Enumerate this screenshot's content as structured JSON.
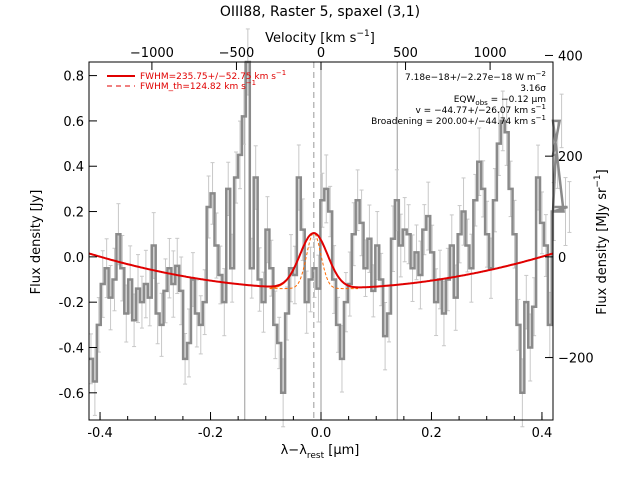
{
  "chart_data": {
    "type": "line",
    "title": "OIII88, Raster 5, spaxel (3,1)",
    "xlabel": "λ−λ",
    "xlabel_sub": "rest",
    "xlabel_unit": " [μm]",
    "ylabel": "Flux density [Jy]",
    "top_axis_label_pre": "Velocity [km s",
    "top_axis_label_sup": "−1",
    "top_axis_label_post": "]",
    "right_axis_label_pre": "Flux density [MJy sr",
    "right_axis_label_sup": "−1",
    "right_axis_label_post": "]",
    "xlim": [
      -0.42,
      0.42
    ],
    "ylim": [
      -0.72,
      0.86
    ],
    "top_xlim": [
      -1372,
      1372
    ],
    "right_ylim": [
      -324,
      387
    ],
    "x_ticks": [
      "-0.4",
      "-0.2",
      "0.0",
      "0.2",
      "0.4"
    ],
    "x_tick_values": [
      -0.4,
      -0.2,
      0.0,
      0.2,
      0.4
    ],
    "y_ticks": [
      "-0.6",
      "-0.4",
      "-0.2",
      "0.0",
      "0.2",
      "0.4",
      "0.6",
      "0.8"
    ],
    "y_tick_values": [
      -0.6,
      -0.4,
      -0.2,
      0.0,
      0.2,
      0.4,
      0.6,
      0.8
    ],
    "top_ticks": [
      "−1000",
      "−500",
      "0",
      "500",
      "1000"
    ],
    "top_tick_values": [
      -1000,
      -500,
      0,
      500,
      1000
    ],
    "right_ticks": [
      "−200",
      "0",
      "200",
      "400"
    ],
    "right_tick_values": [
      -200,
      0,
      200,
      400
    ],
    "vertical_lines": [
      -0.138,
      0.0,
      0.138
    ],
    "dashed_line": -0.013,
    "legend": [
      {
        "label_pre": "FWHM=235.75+/−52.75 km s",
        "label_sup": "−1",
        "style": "solid",
        "color": "#e00000"
      },
      {
        "label_pre": "FWHM_th=124.82 km s",
        "label_sup": "−1",
        "style": "dashed",
        "color": "#e00000"
      }
    ],
    "annotations": [
      {
        "pre": "7.18e−18+/−2.27e−18 W m",
        "sup": "−2"
      },
      {
        "pre": "3.16σ"
      },
      {
        "pre": "EQW",
        "sub": "obs",
        "post": " = −0.12 μm"
      },
      {
        "pre": "v = −44.77+/−26.07 km s",
        "sup": "−1"
      },
      {
        "pre": "Broadening = 200.00+/−44.74 km s",
        "sup": "−1"
      }
    ],
    "series": [
      {
        "style": "steps",
        "color": "#8a8a8a",
        "x_start": -0.42,
        "x_step": 0.0071,
        "values": [
          -0.45,
          -0.55,
          -0.3,
          -0.12,
          -0.05,
          -0.18,
          -0.1,
          0.1,
          -0.05,
          -0.25,
          -0.1,
          -0.28,
          -0.14,
          -0.2,
          -0.12,
          -0.18,
          0.05,
          -0.25,
          -0.3,
          -0.15,
          -0.05,
          -0.12,
          -0.04,
          -0.15,
          -0.45,
          -0.38,
          -0.1,
          -0.25,
          -0.3,
          -0.2,
          0.22,
          0.28,
          0.05,
          -0.08,
          -0.2,
          0.3,
          -0.05,
          0.35,
          0.45,
          0.62,
          0.86,
          -0.05,
          0.35,
          -0.1,
          -0.2,
          0.12,
          -0.05,
          -0.3,
          -0.38,
          -0.6,
          -0.25,
          -0.05,
          -0.08,
          0.35,
          0.12,
          -0.2,
          -0.1,
          -0.05,
          -0.14,
          0.25,
          0.3,
          0.2,
          -0.1,
          -0.3,
          -0.45,
          -0.2,
          -0.12,
          0.1,
          0.25,
          0.15,
          -0.05,
          0.08,
          -0.15,
          0.05,
          -0.1,
          -0.35,
          -0.25,
          0.08,
          0.25,
          0.05,
          0.12,
          0.1,
          -0.05,
          0.02,
          -0.08,
          0.12,
          0.18,
          0.02,
          -0.2,
          -0.1,
          -0.25,
          -0.1,
          0.05,
          -0.18,
          0.1,
          0.2,
          0.05,
          -0.05,
          0.25,
          0.42,
          0.3,
          0.1,
          -0.05,
          0.25,
          0.5,
          0.6,
          0.55,
          0.3,
          0.1,
          -0.3,
          -0.6,
          -0.2,
          -0.4,
          -0.22,
          0.35,
          0.15,
          0.05,
          -0.3,
          0.2,
          0.45,
          0.6,
          0.2,
          0.22
        ]
      },
      {
        "style": "line",
        "color": "#e00000",
        "name_ref": "continuum+gaussian"
      },
      {
        "style": "dashed",
        "color": "#ff6a00",
        "name_ref": "thermal"
      }
    ],
    "model": {
      "continuum_coeff": 0.88,
      "continuum_center": 0.0,
      "continuum_offset": -0.14,
      "gauss_center": -0.013,
      "gauss_amp": 0.245,
      "gauss_sigma": 0.025,
      "gauss_th_sigma": 0.013
    }
  }
}
